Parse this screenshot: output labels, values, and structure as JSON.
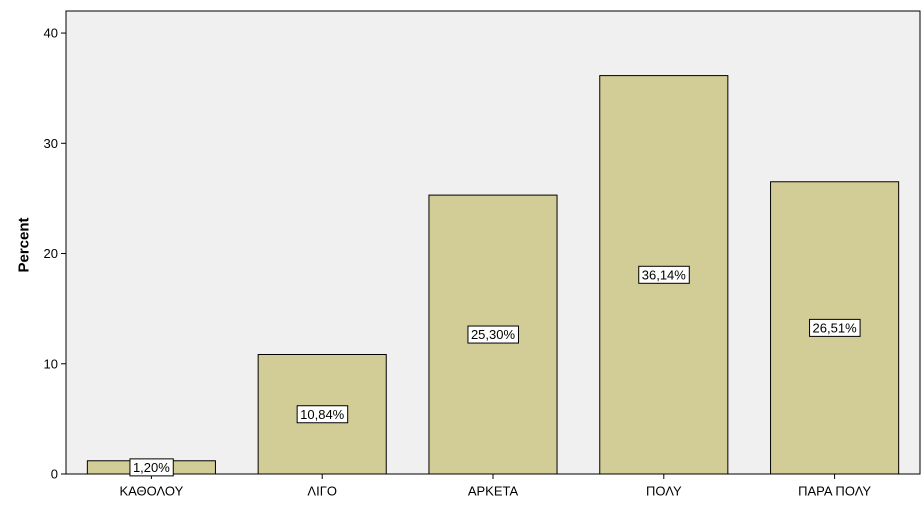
{
  "chart_data": {
    "type": "bar",
    "title": "",
    "xlabel": "",
    "ylabel": "Percent",
    "categories": [
      "ΚΑΘΟΛΟΥ",
      "ΛΙΓΟ",
      "ΑΡΚΕΤΑ",
      "ΠΟΛΥ",
      "ΠΑΡΑ ΠΟΛΥ"
    ],
    "values": [
      1.2,
      10.84,
      25.3,
      36.14,
      26.51
    ],
    "data_labels": [
      "1,20%",
      "10,84%",
      "25,30%",
      "36,14%",
      "26,51%"
    ],
    "ylim": [
      0,
      42
    ],
    "yticks": [
      0,
      10,
      20,
      30,
      40
    ],
    "grid": false,
    "legend": "none",
    "colors": {
      "plot_background": "#f0f0f0",
      "bar_fill": "#d2cd96",
      "bar_stroke": "#000000",
      "label_box_fill": "#ffffff"
    }
  }
}
